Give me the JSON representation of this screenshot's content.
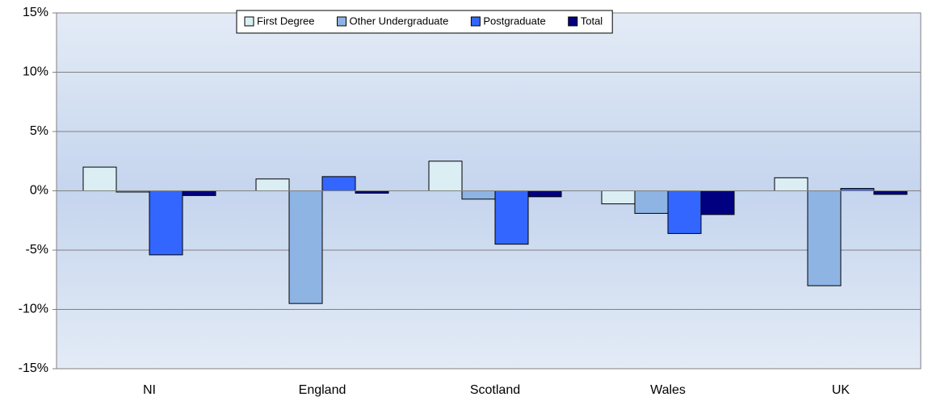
{
  "chart_data": {
    "type": "bar",
    "categories": [
      "NI",
      "England",
      "Scotland",
      "Wales",
      "UK"
    ],
    "series": [
      {
        "name": "First Degree",
        "color": "#dbeef4",
        "values": [
          2.0,
          1.0,
          2.5,
          -1.1,
          1.1
        ]
      },
      {
        "name": "Other Undergraduate",
        "color": "#8eb4e3",
        "values": [
          -0.1,
          -9.5,
          -0.7,
          -1.9,
          -8.0
        ]
      },
      {
        "name": "Postgraduate",
        "color": "#3366ff",
        "values": [
          -5.4,
          1.2,
          -4.5,
          -3.6,
          0.2
        ]
      },
      {
        "name": "Total",
        "color": "#000080",
        "values": [
          -0.4,
          -0.2,
          -0.5,
          -2.0,
          -0.3
        ]
      }
    ],
    "ylim": [
      -15,
      15
    ],
    "yticks": [
      {
        "value": -15,
        "label": "-15%"
      },
      {
        "value": -10,
        "label": "-10%"
      },
      {
        "value": -5,
        "label": "-5%"
      },
      {
        "value": 0,
        "label": "0%"
      },
      {
        "value": 5,
        "label": "5%"
      },
      {
        "value": 10,
        "label": "10%"
      },
      {
        "value": 15,
        "label": "15%"
      }
    ],
    "grid": true,
    "legend": "top"
  }
}
